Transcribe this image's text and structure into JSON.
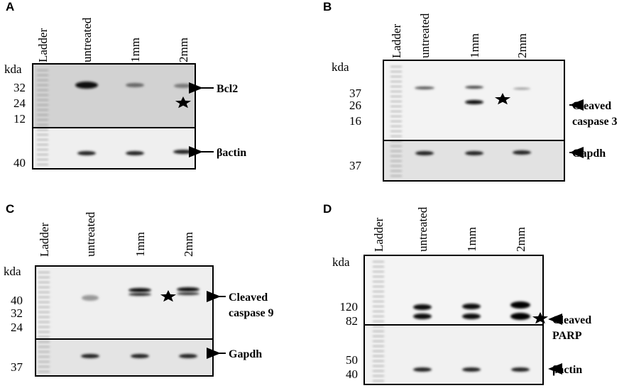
{
  "panels": [
    {
      "letter": "A",
      "lanes": [
        "Ladder",
        "untreated",
        "1mm",
        "2mm"
      ],
      "unit": "kda",
      "markers": [
        32,
        24,
        12,
        40
      ],
      "labels": [
        [
          "Bcl2"
        ],
        [
          "βactin"
        ]
      ]
    },
    {
      "letter": "B",
      "lanes": [
        "Ladder",
        "untreated",
        "1mm",
        "2mm"
      ],
      "unit": "kda",
      "markers": [
        37,
        26,
        16,
        37
      ],
      "labels": [
        [
          "Cleaved",
          "caspase 3"
        ],
        [
          "Gapdh"
        ]
      ]
    },
    {
      "letter": "C",
      "lanes": [
        "Ladder",
        "untreated",
        "1mm",
        "2mm"
      ],
      "unit": "kda",
      "markers": [
        40,
        32,
        24,
        37
      ],
      "labels": [
        [
          "Cleaved",
          "caspase 9"
        ],
        [
          "Gapdh"
        ]
      ]
    },
    {
      "letter": "D",
      "lanes": [
        "Ladder",
        "untreated",
        "1mm",
        "2mm"
      ],
      "unit": "kda",
      "markers": [
        120,
        82,
        50,
        40
      ],
      "labels": [
        [
          "Cleaved",
          "PARP"
        ],
        [
          "βactin"
        ]
      ]
    }
  ]
}
